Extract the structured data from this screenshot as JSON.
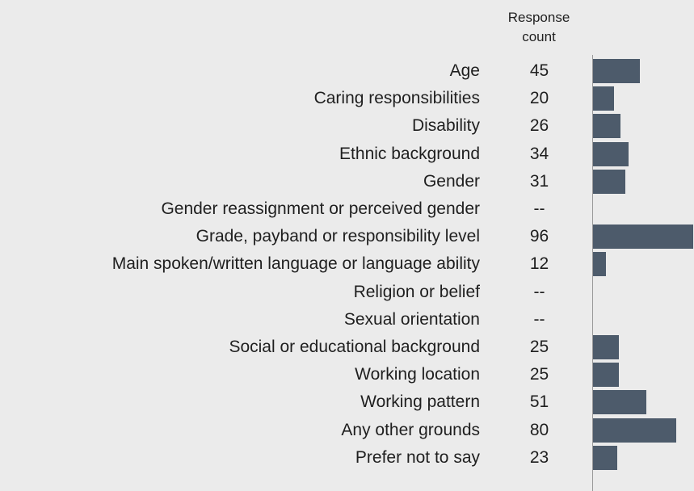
{
  "header": {
    "count_line1": "Response",
    "count_line2": "count"
  },
  "chart_data": {
    "type": "bar",
    "orientation": "horizontal",
    "title": "",
    "xlabel": "",
    "ylabel": "",
    "categories": [
      "Age",
      "Caring responsibilities",
      "Disability",
      "Ethnic background",
      "Gender",
      "Gender reassignment or perceived gender",
      "Grade, payband or responsibility level",
      "Main spoken/written language or language ability",
      "Religion or belief",
      "Sexual orientation",
      "Social or educational background",
      "Working location",
      "Working pattern",
      "Any other grounds",
      "Prefer not to say"
    ],
    "display_counts": [
      "45",
      "20",
      "26",
      "34",
      "31",
      "--",
      "96",
      "12",
      "--",
      "--",
      "25",
      "25",
      "51",
      "80",
      "23"
    ],
    "values": [
      45,
      20,
      26,
      34,
      31,
      null,
      96,
      12,
      null,
      null,
      25,
      25,
      51,
      80,
      23
    ],
    "xlim": [
      0,
      96
    ],
    "bar_color": "#4d5b6b",
    "background_color": "#ebebeb",
    "grid": false,
    "legend": "none"
  }
}
